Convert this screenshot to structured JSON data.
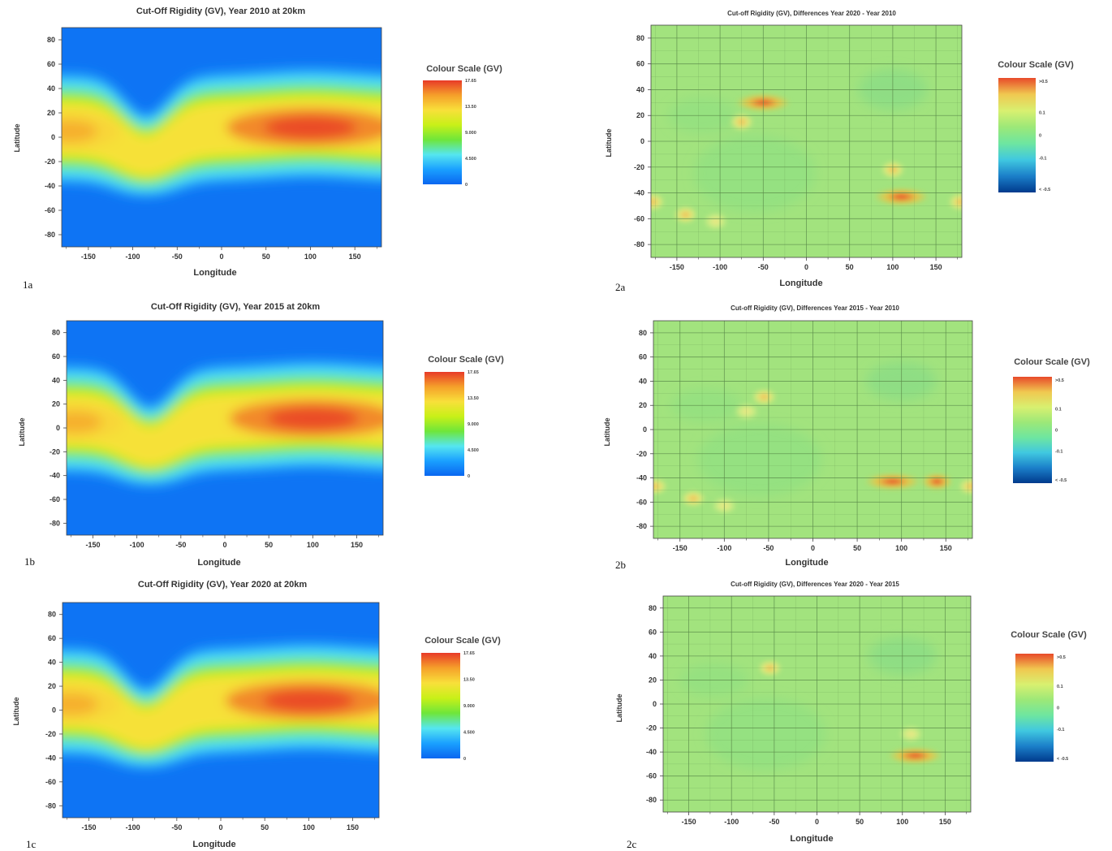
{
  "chart_data": [
    {
      "id": "1a",
      "type": "heatmap",
      "label": "1a",
      "title": "Cut-Off Rigidity (GV), Year 2010 at 20km",
      "xlabel": "Longitude",
      "ylabel": "Latitude",
      "xlim": [
        -180,
        180
      ],
      "ylim": [
        -90,
        90
      ],
      "xticks": [
        -150,
        -100,
        -50,
        0,
        50,
        100,
        150
      ],
      "yticks": [
        80,
        60,
        40,
        20,
        0,
        -20,
        -40,
        -60,
        -80
      ],
      "grid": false,
      "legend": {
        "title": "Colour Scale (GV)",
        "ticks": [
          "17.65",
          "13.50",
          "9.000",
          "4.500",
          "0"
        ],
        "min": 0,
        "max": 17.65
      },
      "field": {
        "peaks": [
          {
            "lon": 100,
            "lat": 8,
            "value": 17.2
          },
          {
            "lon": -170,
            "lat": 5,
            "value": 14.5
          }
        ],
        "dip_lon": -85,
        "dip_lat": -20
      }
    },
    {
      "id": "1b",
      "type": "heatmap",
      "label": "1b",
      "title": "Cut-Off Rigidity (GV), Year 2015 at 20km",
      "xlabel": "Longitude",
      "ylabel": "Latitude",
      "xlim": [
        -180,
        180
      ],
      "ylim": [
        -90,
        90
      ],
      "xticks": [
        -150,
        -100,
        -50,
        0,
        50,
        100,
        150
      ],
      "yticks": [
        80,
        60,
        40,
        20,
        0,
        -20,
        -40,
        -60,
        -80
      ],
      "grid": false,
      "legend": {
        "title": "Colour Scale (GV)",
        "ticks": [
          "17.65",
          "13.50",
          "9.000",
          "4.500",
          "0"
        ],
        "min": 0,
        "max": 17.65
      },
      "field": {
        "peaks": [
          {
            "lon": 100,
            "lat": 8,
            "value": 17.2
          },
          {
            "lon": -170,
            "lat": 5,
            "value": 14.5
          }
        ],
        "dip_lon": -85,
        "dip_lat": -20
      }
    },
    {
      "id": "1c",
      "type": "heatmap",
      "label": "1c",
      "title": "Cut-Off Rigidity (GV), Year 2020 at 20km",
      "xlabel": "Longitude",
      "ylabel": "Latitude",
      "xlim": [
        -180,
        180
      ],
      "ylim": [
        -90,
        90
      ],
      "xticks": [
        -150,
        -100,
        -50,
        0,
        50,
        100,
        150
      ],
      "yticks": [
        80,
        60,
        40,
        20,
        0,
        -20,
        -40,
        -60,
        -80
      ],
      "grid": false,
      "legend": {
        "title": "Colour Scale (GV)",
        "ticks": [
          "17.65",
          "13.50",
          "9.000",
          "4.500",
          "0"
        ],
        "min": 0,
        "max": 17.65
      },
      "field": {
        "peaks": [
          {
            "lon": 100,
            "lat": 8,
            "value": 17.2
          },
          {
            "lon": -170,
            "lat": 5,
            "value": 14.5
          }
        ],
        "dip_lon": -85,
        "dip_lat": -20
      }
    },
    {
      "id": "2a",
      "type": "heatmap",
      "label": "2a",
      "title": "Cut-off Rigidity (GV), Differences Year 2020 - Year 2010",
      "xlabel": "Longitude",
      "ylabel": "Latitude",
      "xlim": [
        -180,
        180
      ],
      "ylim": [
        -90,
        90
      ],
      "xticks": [
        -150,
        -100,
        -50,
        0,
        50,
        100,
        150
      ],
      "yticks": [
        80,
        60,
        40,
        20,
        0,
        -20,
        -40,
        -60,
        -80
      ],
      "grid": true,
      "legend": {
        "title": "Colour Scale (GV)",
        "ticks": [
          ">0.5",
          "0.1",
          "0",
          "-0.1",
          "< -0.5"
        ],
        "min": -0.5,
        "max": 0.5
      },
      "hotspots": [
        {
          "lon": -50,
          "lat": 30,
          "value": 0.5
        },
        {
          "lon": -75,
          "lat": 15,
          "value": 0.2
        },
        {
          "lon": 110,
          "lat": -43,
          "value": 0.55
        },
        {
          "lon": 100,
          "lat": -22,
          "value": 0.2
        },
        {
          "lon": -140,
          "lat": -57,
          "value": 0.25
        },
        {
          "lon": -178,
          "lat": -47,
          "value": 0.22
        },
        {
          "lon": 178,
          "lat": -47,
          "value": 0.22
        },
        {
          "lon": -105,
          "lat": -62,
          "value": 0.15
        }
      ]
    },
    {
      "id": "2b",
      "type": "heatmap",
      "label": "2b",
      "title": "Cut-off Rigidity (GV), Differences Year 2015 - Year 2010",
      "xlabel": "Longitude",
      "ylabel": "Latitude",
      "xlim": [
        -180,
        180
      ],
      "ylim": [
        -90,
        90
      ],
      "xticks": [
        -150,
        -100,
        -50,
        0,
        50,
        100,
        150
      ],
      "yticks": [
        80,
        60,
        40,
        20,
        0,
        -20,
        -40,
        -60,
        -80
      ],
      "grid": true,
      "legend": {
        "title": "Colour Scale (GV)",
        "ticks": [
          ">0.5",
          "0.1",
          "0",
          "-0.1",
          "< -0.5"
        ],
        "min": -0.5,
        "max": 0.5
      },
      "hotspots": [
        {
          "lon": -55,
          "lat": 27,
          "value": 0.25
        },
        {
          "lon": -75,
          "lat": 15,
          "value": 0.15
        },
        {
          "lon": 90,
          "lat": -43,
          "value": 0.5
        },
        {
          "lon": 140,
          "lat": -43,
          "value": 0.45
        },
        {
          "lon": -135,
          "lat": -57,
          "value": 0.25
        },
        {
          "lon": -178,
          "lat": -47,
          "value": 0.2
        },
        {
          "lon": 178,
          "lat": -47,
          "value": 0.2
        },
        {
          "lon": -100,
          "lat": -63,
          "value": 0.15
        }
      ]
    },
    {
      "id": "2c",
      "type": "heatmap",
      "label": "2c",
      "title": "Cut-off Rigidity (GV), Differences Year 2020 - Year 2015",
      "xlabel": "Longitude",
      "ylabel": "Latitude",
      "xlim": [
        -180,
        180
      ],
      "ylim": [
        -90,
        90
      ],
      "xticks": [
        -150,
        -100,
        -50,
        0,
        50,
        100,
        150
      ],
      "yticks": [
        80,
        60,
        40,
        20,
        0,
        -20,
        -40,
        -60,
        -80
      ],
      "grid": true,
      "legend": {
        "title": "Colour Scale (GV)",
        "ticks": [
          ">0.5",
          "0.1",
          "0",
          "-0.1",
          "< -0.5"
        ],
        "min": -0.5,
        "max": 0.5
      },
      "hotspots": [
        {
          "lon": 115,
          "lat": -43,
          "value": 0.55
        },
        {
          "lon": -55,
          "lat": 30,
          "value": 0.2
        },
        {
          "lon": 110,
          "lat": -25,
          "value": 0.1
        }
      ]
    }
  ],
  "colors": {
    "abs_scale": [
      "#0a66f0",
      "#1aa0ff",
      "#55e6f0",
      "#6fe63a",
      "#c8f018",
      "#f8e03a",
      "#f5a02a",
      "#e83a28"
    ],
    "diff_scale": [
      "#003a8c",
      "#1b7fc9",
      "#40c8e0",
      "#6ee6a0",
      "#9ce878",
      "#d8f070",
      "#f0c850",
      "#e84a2a"
    ],
    "diff_background": "#a2e37e",
    "grid_line": "#5a8a4a",
    "axis_text": "#333333"
  }
}
